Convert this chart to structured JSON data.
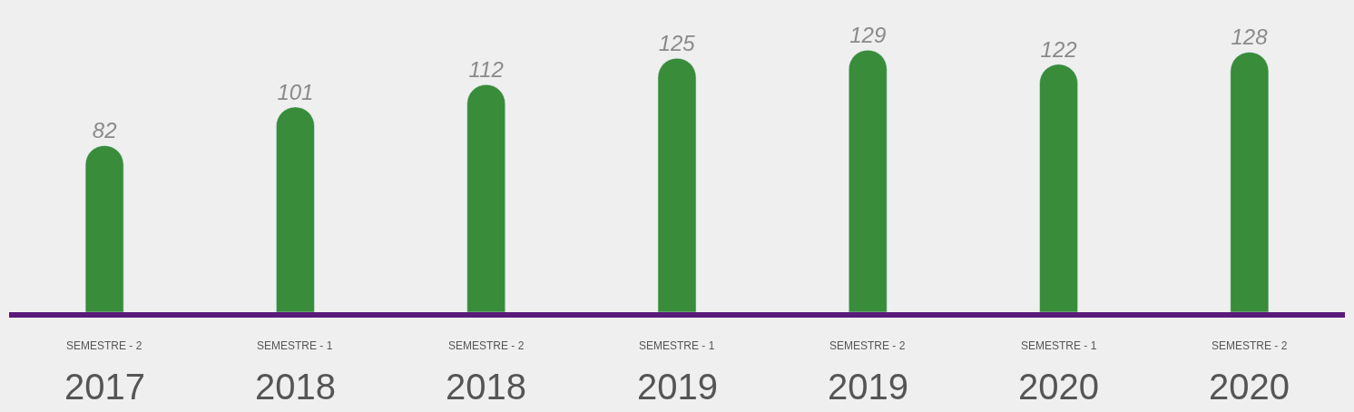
{
  "chart_data": {
    "type": "bar",
    "categories": [
      "SEMESTRE - 2\n2017",
      "SEMESTRE - 1\n2018",
      "SEMESTRE - 2\n2018",
      "SEMESTRE - 1\n2019",
      "SEMESTRE - 2\n2019",
      "SEMESTRE - 1\n2020",
      "SEMESTRE - 2\n2020"
    ],
    "values": [
      82,
      101,
      112,
      125,
      129,
      122,
      128
    ],
    "color": "#388c3a",
    "data_labels": true,
    "grid": false,
    "legend": false,
    "tick_labels": "x"
  }
}
